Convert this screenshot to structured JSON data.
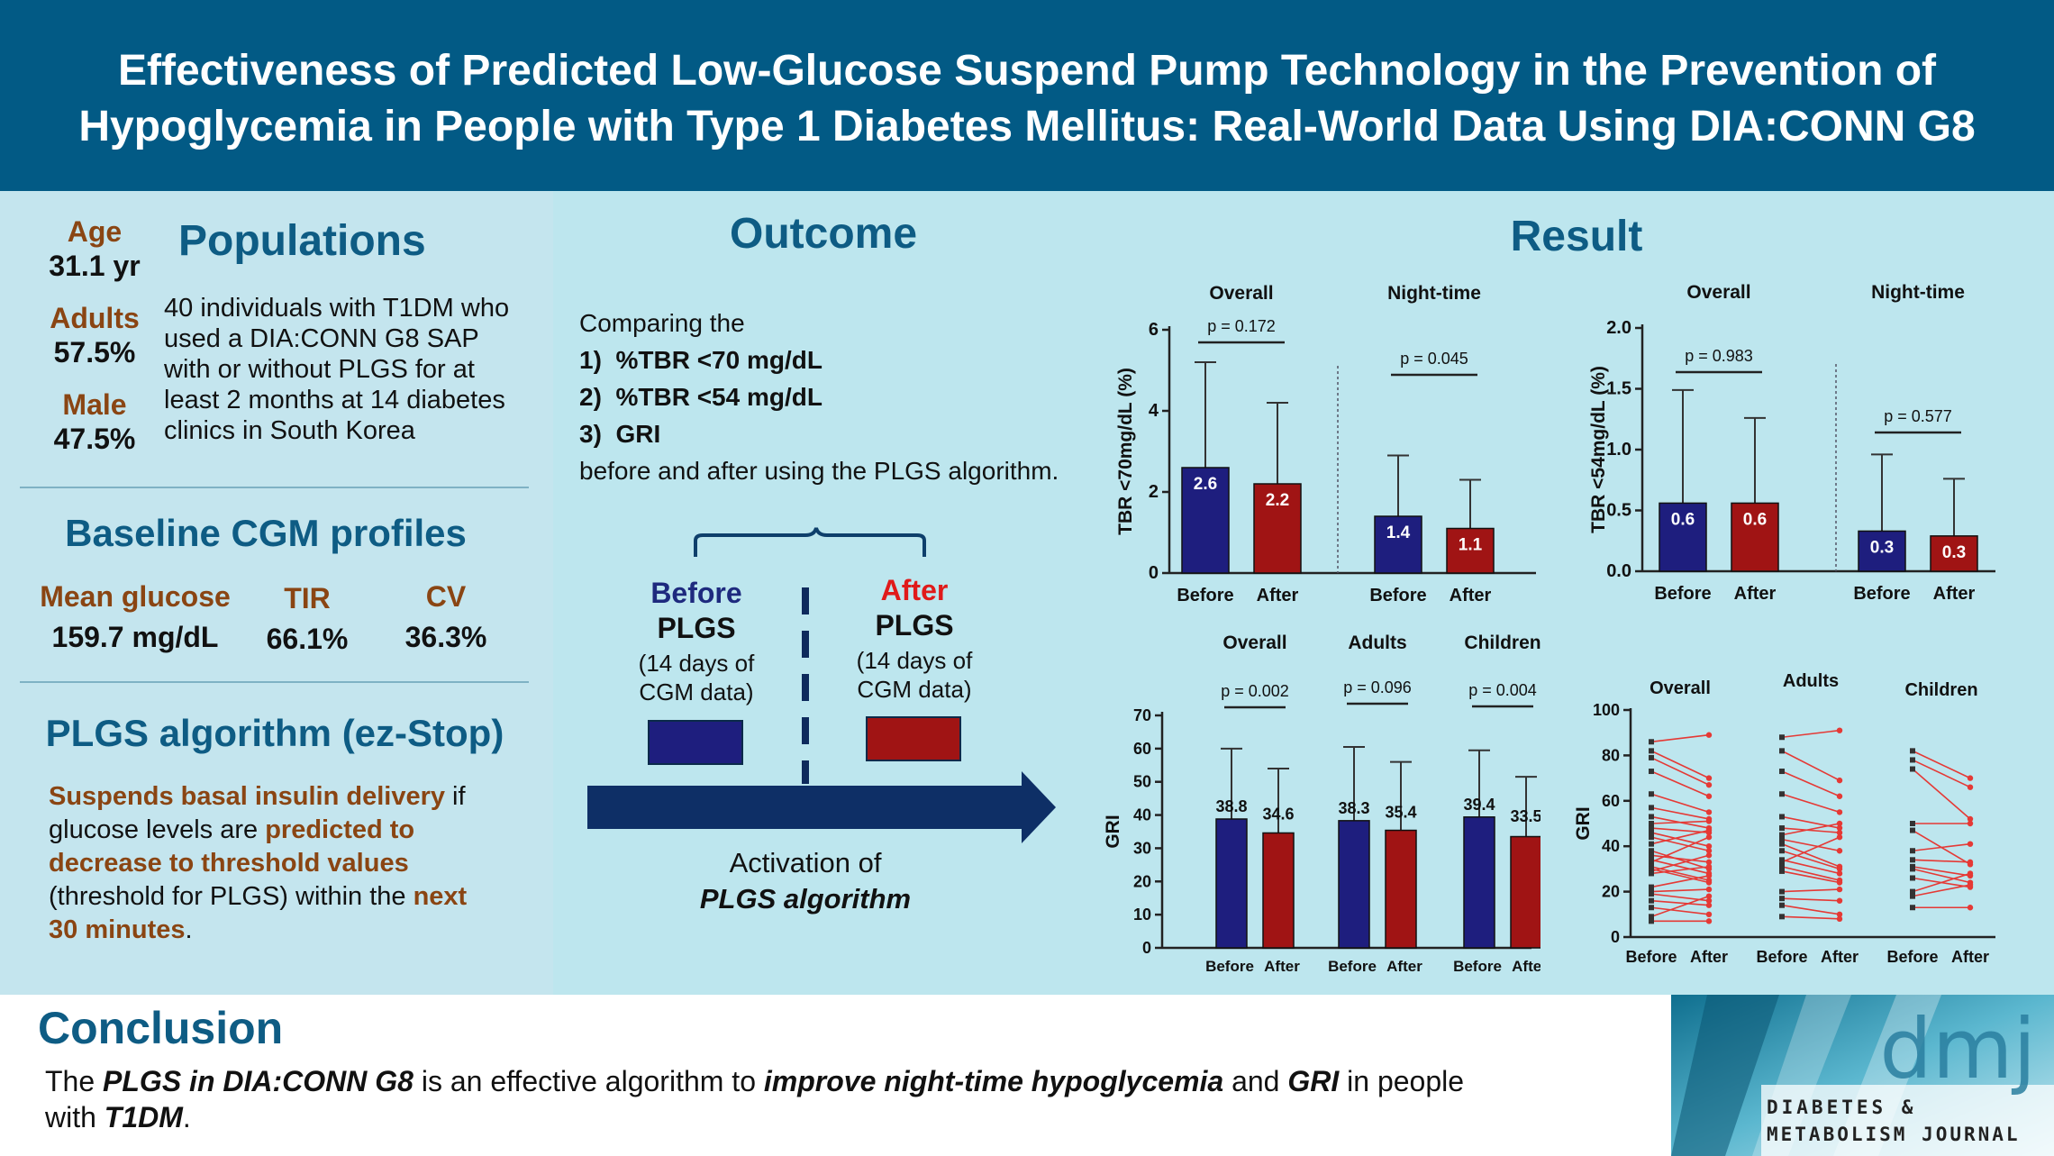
{
  "title": {
    "line1": "Effectiveness of Predicted Low-Glucose Suspend Pump Technology in the Prevention of",
    "line2": "Hypoglycemia in People with Type 1 Diabetes Mellitus: Real-World Data Using DIA:CONN G8"
  },
  "populations": {
    "heading": "Populations",
    "stats": [
      {
        "label": "Age",
        "value": "31.1 yr"
      },
      {
        "label": "Adults",
        "value": "57.5%"
      },
      {
        "label": "Male",
        "value": "47.5%"
      }
    ],
    "description": [
      "40 individuals with T1DM who",
      "used a DIA:CONN G8 SAP",
      "with or without PLGS for at",
      "least 2 months at 14 diabetes",
      "clinics in South Korea"
    ]
  },
  "baseline": {
    "heading": "Baseline CGM profiles",
    "items": [
      {
        "label": "Mean glucose",
        "value": "159.7 mg/dL"
      },
      {
        "label": "TIR",
        "value": "66.1%"
      },
      {
        "label": "CV",
        "value": "36.3%"
      }
    ]
  },
  "algorithm": {
    "heading": "PLGS algorithm (ez-Stop)",
    "p1a": "Suspends basal insulin delivery",
    "p1b": " if",
    "p2a": "glucose levels are ",
    "p2b": "predicted to",
    "p3": "decrease to threshold values",
    "p4": "(threshold for PLGS) within the ",
    "p4b": "next",
    "p5": "30 minutes",
    "p5b": "."
  },
  "outcome": {
    "heading": "Outcome",
    "intro": "Comparing the",
    "items": [
      {
        "num": "1)",
        "text": "%TBR <70 mg/dL"
      },
      {
        "num": "2)",
        "text": "%TBR <54 mg/dL"
      },
      {
        "num": "3)",
        "text": "GRI"
      }
    ],
    "outro": "before and after using the PLGS algorithm.",
    "before": {
      "line1": "Before",
      "line2": "PLGS",
      "line3": "(14 days of",
      "line4": "CGM data)"
    },
    "after": {
      "line1": "After",
      "line2": "PLGS",
      "line3": "(14 days of",
      "line4": "CGM data)"
    },
    "activation1": "Activation of",
    "activation2": "PLGS algorithm"
  },
  "result": {
    "heading": "Result"
  },
  "colors": {
    "before": "#1e1e7e",
    "after": "#a01414",
    "header": "#025a85",
    "heading": "#0e5c84",
    "accent": "#8a4513"
  },
  "chart_data": [
    {
      "type": "bar",
      "id": "tbr70",
      "ylabel": "TBR <70mg/dL (%)",
      "ylim": [
        0,
        6
      ],
      "yticks": [
        0,
        2,
        4,
        6
      ],
      "groups": [
        {
          "title": "Overall",
          "p": "p = 0.172",
          "categories": [
            "Before",
            "After"
          ],
          "values": [
            2.6,
            2.2
          ],
          "labels": [
            "2.6",
            "2.2"
          ],
          "err": [
            5.2,
            4.2
          ]
        },
        {
          "title": "Night-time",
          "p": "p = 0.045",
          "categories": [
            "Before",
            "After"
          ],
          "values": [
            1.4,
            1.1
          ],
          "labels": [
            "1.4",
            "1.1"
          ],
          "err": [
            2.9,
            2.3
          ]
        }
      ]
    },
    {
      "type": "bar",
      "id": "tbr54",
      "ylabel": "TBR <54mg/dL (%)",
      "ylim": [
        0,
        2.0
      ],
      "yticks": [
        0,
        0.5,
        1.0,
        1.5,
        2.0
      ],
      "ytickLabels": [
        "0.0",
        "0.5",
        "1.0",
        "1.5",
        "2.0"
      ],
      "groups": [
        {
          "title": "Overall",
          "p": "p = 0.983",
          "categories": [
            "Before",
            "After"
          ],
          "values": [
            0.56,
            0.56
          ],
          "labels": [
            "0.6",
            "0.6"
          ],
          "err": [
            1.49,
            1.26
          ]
        },
        {
          "title": "Night-time",
          "p": "p = 0.577",
          "categories": [
            "Before",
            "After"
          ],
          "values": [
            0.33,
            0.29
          ],
          "labels": [
            "0.3",
            "0.3"
          ],
          "err": [
            0.96,
            0.76
          ]
        }
      ]
    },
    {
      "type": "bar",
      "id": "gri",
      "ylabel": "GRI",
      "ylim": [
        0,
        70
      ],
      "yticks": [
        0,
        10,
        20,
        30,
        40,
        50,
        60,
        70
      ],
      "groups": [
        {
          "title": "Overall",
          "p": "p = 0.002",
          "categories": [
            "Before",
            "After"
          ],
          "values": [
            38.8,
            34.6
          ],
          "labels": [
            "38.8",
            "34.6"
          ],
          "err": [
            60,
            54
          ]
        },
        {
          "title": "Adults",
          "p": "p = 0.096",
          "categories": [
            "Before",
            "After"
          ],
          "values": [
            38.3,
            35.4
          ],
          "labels": [
            "38.3",
            "35.4"
          ],
          "err": [
            60.5,
            56
          ]
        },
        {
          "title": "Children",
          "p": "p = 0.004",
          "categories": [
            "Before",
            "After"
          ],
          "values": [
            39.4,
            33.5
          ],
          "labels": [
            "39.4",
            "33.5"
          ],
          "err": [
            59.5,
            51.5
          ]
        }
      ]
    },
    {
      "type": "line",
      "id": "gri-paired",
      "ylabel": "GRI",
      "ylim": [
        0,
        100
      ],
      "yticks": [
        0,
        20,
        40,
        60,
        80,
        100
      ],
      "groups": [
        {
          "title": "Overall",
          "categories": [
            "Before",
            "After"
          ],
          "pairs": [
            [
              86,
              89
            ],
            [
              82,
              70
            ],
            [
              79,
              67
            ],
            [
              73,
              62
            ],
            [
              63,
              55
            ],
            [
              57,
              52
            ],
            [
              53,
              48
            ],
            [
              50,
              51
            ],
            [
              48,
              46
            ],
            [
              46,
              40
            ],
            [
              44,
              38
            ],
            [
              41,
              47
            ],
            [
              38,
              30
            ],
            [
              36,
              33
            ],
            [
              34,
              28
            ],
            [
              33,
              44
            ],
            [
              31,
              25
            ],
            [
              30,
              24
            ],
            [
              29,
              36
            ],
            [
              28,
              31
            ],
            [
              22,
              27
            ],
            [
              20,
              21
            ],
            [
              19,
              16
            ],
            [
              16,
              14
            ],
            [
              13,
              10
            ],
            [
              9,
              18
            ],
            [
              7,
              7
            ]
          ]
        },
        {
          "title": "Adults",
          "categories": [
            "Before",
            "After"
          ],
          "pairs": [
            [
              88,
              91
            ],
            [
              82,
              69
            ],
            [
              73,
              62
            ],
            [
              63,
              55
            ],
            [
              53,
              48
            ],
            [
              48,
              46
            ],
            [
              45,
              50
            ],
            [
              43,
              38
            ],
            [
              41,
              31
            ],
            [
              38,
              30
            ],
            [
              34,
              28
            ],
            [
              33,
              44
            ],
            [
              31,
              25
            ],
            [
              29,
              24
            ],
            [
              20,
              21
            ],
            [
              17,
              16
            ],
            [
              14,
              10
            ],
            [
              9,
              8
            ]
          ]
        },
        {
          "title": "Children",
          "categories": [
            "Before",
            "After"
          ],
          "pairs": [
            [
              82,
              70
            ],
            [
              78,
              66
            ],
            [
              74,
              52
            ],
            [
              50,
              50
            ],
            [
              47,
              32
            ],
            [
              38,
              41
            ],
            [
              34,
              33
            ],
            [
              31,
              27
            ],
            [
              30,
              24
            ],
            [
              26,
              22
            ],
            [
              20,
              28
            ],
            [
              18,
              23
            ],
            [
              13,
              13
            ]
          ]
        }
      ]
    }
  ],
  "conclusion": {
    "heading": "Conclusion",
    "t1": "The ",
    "t2": "PLGS in DIA:CONN G8",
    "t3": " is an effective algorithm to ",
    "t4": "improve night-time hypoglycemia",
    "t5": " and ",
    "t6": "GRI",
    "t7": " in people",
    "t8": "with ",
    "t9": "T1DM",
    "t10": "."
  },
  "journal": {
    "logo": "dmj",
    "name1": "DIABETES &",
    "name2": "METABOLISM JOURNAL"
  }
}
